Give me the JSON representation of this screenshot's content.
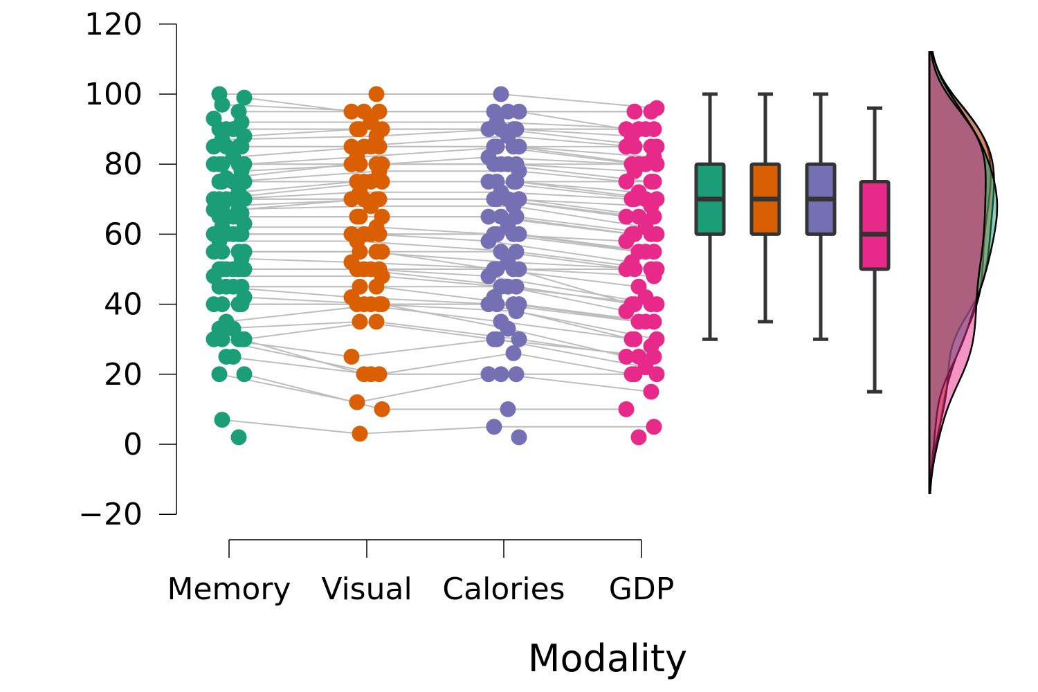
{
  "chart_data": {
    "type": "scatter",
    "title": "",
    "xlabel": "Modality",
    "ylabel": "",
    "ylim": [
      -20,
      120
    ],
    "yticks": [
      -20,
      0,
      20,
      40,
      60,
      80,
      100,
      120
    ],
    "grid": false,
    "legend": "none",
    "categories": [
      "Memory",
      "Visual",
      "Calories",
      "GDP"
    ],
    "series": [
      {
        "color": "#1b9e77",
        "values": [
          100,
          99,
          97,
          95,
          93,
          92,
          90,
          90,
          90,
          88,
          87,
          85,
          85,
          85,
          85,
          82,
          80,
          80,
          80,
          80,
          80,
          78,
          76,
          75,
          75,
          75,
          75,
          72,
          70,
          70,
          70,
          70,
          70,
          70,
          68,
          67,
          67,
          66,
          65,
          65,
          65,
          63,
          62,
          60,
          60,
          60,
          60,
          60,
          58,
          55,
          55,
          55,
          55,
          53,
          50,
          50,
          50,
          50,
          50,
          50,
          48,
          45,
          45,
          45,
          45,
          42,
          40,
          40,
          40,
          40,
          35,
          33,
          33,
          30,
          30,
          30,
          30,
          30,
          25,
          25,
          20,
          20,
          7,
          2
        ],
        "box": {
          "min": 30,
          "q1": 60,
          "median": 70,
          "q3": 80,
          "max": 100
        }
      },
      {
        "color": "#d95f02",
        "values": [
          100,
          95,
          95,
          95,
          92,
          90,
          90,
          90,
          88,
          85,
          85,
          85,
          85,
          82,
          80,
          80,
          80,
          80,
          78,
          75,
          75,
          75,
          75,
          72,
          70,
          70,
          70,
          70,
          68,
          65,
          65,
          65,
          62,
          60,
          60,
          60,
          60,
          58,
          55,
          55,
          55,
          52,
          50,
          50,
          50,
          50,
          48,
          45,
          45,
          42,
          40,
          40,
          40,
          40,
          40,
          35,
          35,
          25,
          20,
          20,
          20,
          12,
          10,
          3
        ],
        "box": {
          "min": 35,
          "q1": 60,
          "median": 70,
          "q3": 80,
          "max": 100
        }
      },
      {
        "color": "#7570b3",
        "values": [
          100,
          95,
          95,
          95,
          92,
          90,
          90,
          90,
          90,
          88,
          85,
          85,
          85,
          85,
          82,
          80,
          80,
          80,
          80,
          78,
          75,
          75,
          75,
          75,
          72,
          70,
          70,
          70,
          70,
          68,
          65,
          65,
          65,
          62,
          60,
          60,
          60,
          60,
          58,
          55,
          55,
          52,
          50,
          50,
          50,
          50,
          48,
          45,
          45,
          45,
          42,
          40,
          40,
          40,
          40,
          38,
          35,
          33,
          30,
          30,
          30,
          26,
          20,
          20,
          20,
          10,
          5,
          2
        ],
        "box": {
          "min": 30,
          "q1": 60,
          "median": 70,
          "q3": 80,
          "max": 100
        }
      },
      {
        "color": "#e7298a",
        "values": [
          96,
          95,
          95,
          90,
          90,
          90,
          90,
          88,
          85,
          85,
          85,
          85,
          82,
          80,
          80,
          80,
          80,
          78,
          75,
          75,
          75,
          72,
          70,
          70,
          70,
          70,
          68,
          65,
          65,
          65,
          62,
          60,
          60,
          60,
          60,
          58,
          55,
          55,
          55,
          52,
          50,
          50,
          50,
          50,
          48,
          45,
          42,
          40,
          40,
          40,
          40,
          38,
          35,
          35,
          35,
          30,
          30,
          30,
          28,
          25,
          25,
          25,
          22,
          20,
          20,
          20,
          15,
          10,
          5,
          2
        ],
        "box": {
          "min": 15,
          "q1": 50,
          "median": 60,
          "q3": 75,
          "max": 96
        }
      }
    ]
  }
}
